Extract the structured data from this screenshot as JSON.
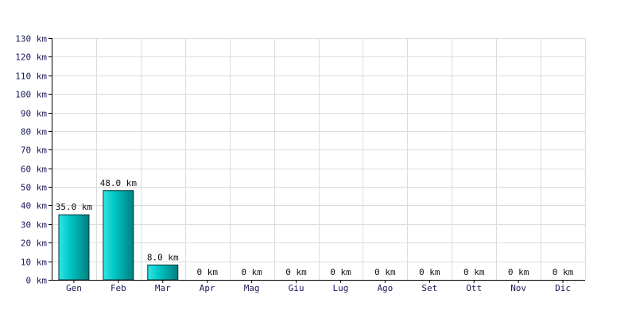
{
  "chart_data": {
    "type": "bar",
    "categories": [
      "Gen",
      "Feb",
      "Mar",
      "Apr",
      "Mag",
      "Giu",
      "Lug",
      "Ago",
      "Set",
      "Ott",
      "Nov",
      "Dic"
    ],
    "values": [
      35.0,
      48.0,
      8.0,
      0,
      0,
      0,
      0,
      0,
      0,
      0,
      0,
      0
    ],
    "data_labels": [
      "35.0 km",
      "48.0 km",
      "8.0 km",
      "0 km",
      "0 km",
      "0 km",
      "0 km",
      "0 km",
      "0 km",
      "0 km",
      "0 km",
      "0 km"
    ],
    "y_ticks": [
      "0 km",
      "10 km",
      "20 km",
      "30 km",
      "40 km",
      "50 km",
      "60 km",
      "70 km",
      "80 km",
      "90 km",
      "100 km",
      "110 km",
      "120 km",
      "130 km"
    ],
    "ylim": [
      0,
      130
    ],
    "grid": true,
    "colors": {
      "bar_light": "#33e6e6",
      "bar_mid": "#00c8c8",
      "bar_dark": "#007f7f",
      "bar_outline": "#003333",
      "grid": "#dcdcdc",
      "axis": "#000000"
    }
  }
}
